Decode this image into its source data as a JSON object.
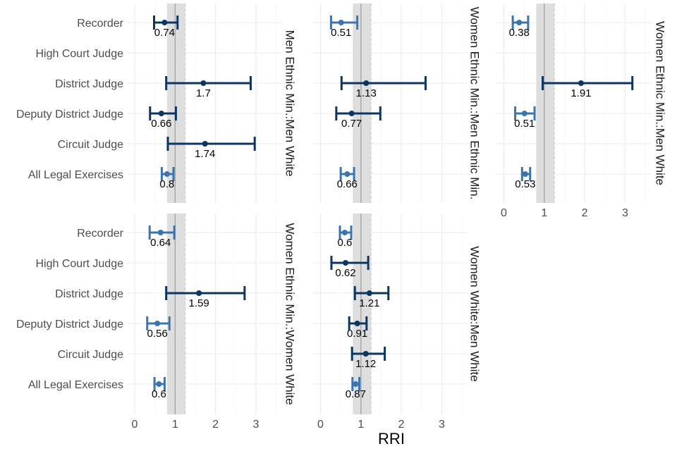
{
  "chart_data": {
    "type": "forest",
    "title": "",
    "xlabel": "RRI",
    "ylabel": "",
    "xlim": [
      -0.2,
      3.65
    ],
    "xticks": [
      0,
      1,
      2,
      3
    ],
    "reference_line": 1,
    "reference_band": [
      0.8,
      1.25
    ],
    "grid": true,
    "categories": [
      "Recorder",
      "High Court Judge",
      "District Judge",
      "Deputy District Judge",
      "Circuit Judge",
      "All Legal Exercises"
    ],
    "colors": {
      "significant": "#3c75ae",
      "not_significant": "#0d3560",
      "band": "#dcdcdc",
      "ref_line": "#a6a6a6",
      "grid": "#ebebeb"
    },
    "panels": [
      {
        "name": "Men Ethnic Min.:Men White",
        "points": [
          {
            "category": "Recorder",
            "value": 0.74,
            "label": "0.74",
            "lower": 0.48,
            "upper": 1.06,
            "significant": false
          },
          {
            "category": "District Judge",
            "value": 1.7,
            "label": "1.7",
            "lower": 0.78,
            "upper": 2.87,
            "significant": false
          },
          {
            "category": "Deputy District Judge",
            "value": 0.66,
            "label": "0.66",
            "lower": 0.38,
            "upper": 1.02,
            "significant": false
          },
          {
            "category": "Circuit Judge",
            "value": 1.74,
            "label": "1.74",
            "lower": 0.82,
            "upper": 2.97,
            "significant": false
          },
          {
            "category": "All Legal Exercises",
            "value": 0.8,
            "label": "0.8",
            "lower": 0.67,
            "upper": 0.96,
            "significant": true
          }
        ]
      },
      {
        "name": "Women Ethnic Min.:Men Ethnic Min.",
        "points": [
          {
            "category": "Recorder",
            "value": 0.51,
            "label": "0.51",
            "lower": 0.26,
            "upper": 0.91,
            "significant": true
          },
          {
            "category": "District Judge",
            "value": 1.13,
            "label": "1.13",
            "lower": 0.52,
            "upper": 2.6,
            "significant": false
          },
          {
            "category": "Deputy District Judge",
            "value": 0.77,
            "label": "0.77",
            "lower": 0.39,
            "upper": 1.48,
            "significant": false
          },
          {
            "category": "All Legal Exercises",
            "value": 0.66,
            "label": "0.66",
            "lower": 0.5,
            "upper": 0.83,
            "significant": true
          }
        ]
      },
      {
        "name": "Women Ethnic Min.:Men White",
        "points": [
          {
            "category": "Recorder",
            "value": 0.38,
            "label": "0.38",
            "lower": 0.22,
            "upper": 0.6,
            "significant": true
          },
          {
            "category": "District Judge",
            "value": 1.91,
            "label": "1.91",
            "lower": 0.96,
            "upper": 3.18,
            "significant": false
          },
          {
            "category": "Deputy District Judge",
            "value": 0.51,
            "label": "0.51",
            "lower": 0.28,
            "upper": 0.76,
            "significant": true
          },
          {
            "category": "All Legal Exercises",
            "value": 0.53,
            "label": "0.53",
            "lower": 0.45,
            "upper": 0.65,
            "significant": true
          }
        ]
      },
      {
        "name": "Women Ethnic Min.:Women White",
        "points": [
          {
            "category": "Recorder",
            "value": 0.64,
            "label": "0.64",
            "lower": 0.37,
            "upper": 0.98,
            "significant": true
          },
          {
            "category": "District Judge",
            "value": 1.59,
            "label": "1.59",
            "lower": 0.78,
            "upper": 2.72,
            "significant": false
          },
          {
            "category": "Deputy District Judge",
            "value": 0.56,
            "label": "0.56",
            "lower": 0.31,
            "upper": 0.86,
            "significant": true
          },
          {
            "category": "All Legal Exercises",
            "value": 0.6,
            "label": "0.6",
            "lower": 0.49,
            "upper": 0.74,
            "significant": true
          }
        ]
      },
      {
        "name": "Women White:Men White",
        "points": [
          {
            "category": "Recorder",
            "value": 0.6,
            "label": "0.6",
            "lower": 0.48,
            "upper": 0.76,
            "significant": true
          },
          {
            "category": "High Court Judge",
            "value": 0.62,
            "label": "0.62",
            "lower": 0.27,
            "upper": 1.18,
            "significant": false
          },
          {
            "category": "District Judge",
            "value": 1.21,
            "label": "1.21",
            "lower": 0.85,
            "upper": 1.68,
            "significant": false
          },
          {
            "category": "Deputy District Judge",
            "value": 0.91,
            "label": "0.91",
            "lower": 0.71,
            "upper": 1.14,
            "significant": false
          },
          {
            "category": "Circuit Judge",
            "value": 1.12,
            "label": "1.12",
            "lower": 0.78,
            "upper": 1.59,
            "significant": false
          },
          {
            "category": "All Legal Exercises",
            "value": 0.87,
            "label": "0.87",
            "lower": 0.79,
            "upper": 0.96,
            "significant": true
          }
        ]
      }
    ]
  }
}
